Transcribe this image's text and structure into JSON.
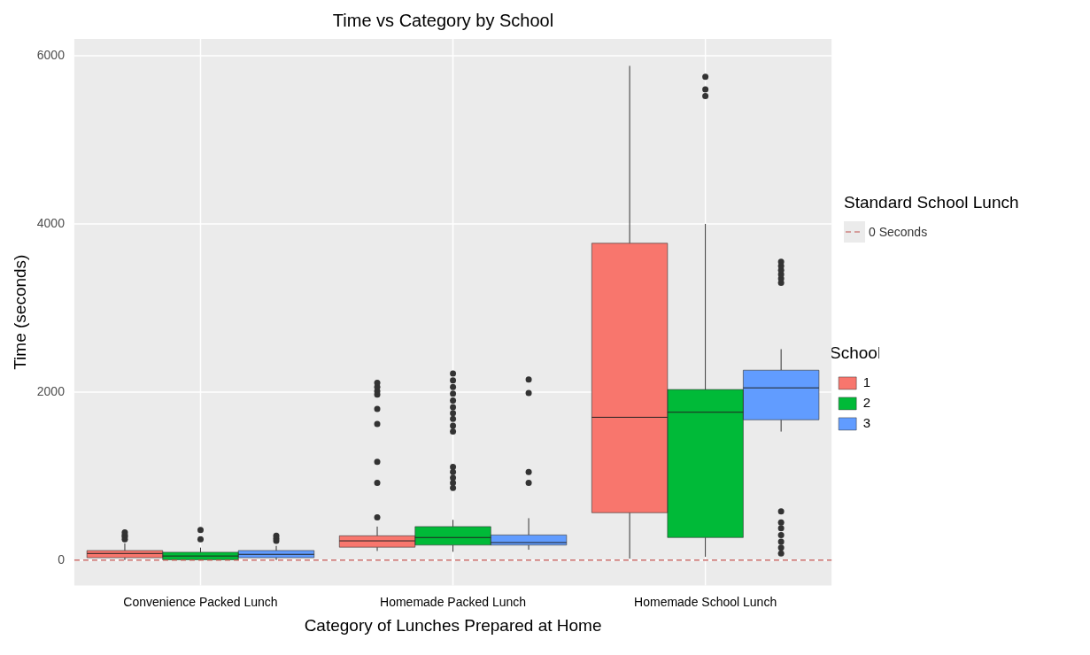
{
  "chart_data": {
    "type": "box",
    "title": "Time vs Category by School",
    "xlabel": "Category of Lunches Prepared at Home",
    "ylabel": "Time (seconds)",
    "legend_title": "School",
    "legend": "right",
    "annotations": [
      "Standard School Lunch"
    ],
    "categories": [
      "Convenience Packed Lunch",
      "Homemade Packed Lunch",
      "Homemade School Lunch"
    ],
    "ylim": [
      -300,
      6200
    ],
    "yticks": [
      0,
      2000,
      4000,
      6000
    ],
    "grid": true,
    "ref_lines": [
      {
        "axis": "y",
        "value": 0,
        "label": "0 Seconds",
        "color": "#c0504d",
        "line_style": "dashed"
      }
    ],
    "series": [
      {
        "name": "1",
        "color": "#f8766d",
        "boxes": [
          {
            "low": 0,
            "q1": 30,
            "median": 80,
            "q3": 115,
            "high": 200,
            "outliers": [
              250,
              280,
              300,
              330
            ]
          },
          {
            "low": 110,
            "q1": 155,
            "median": 230,
            "q3": 290,
            "high": 400,
            "outliers": [
              510,
              920,
              1170,
              1620,
              1800,
              1970,
              2010,
              2060,
              2110
            ]
          },
          {
            "low": 20,
            "q1": 565,
            "median": 1700,
            "q3": 3770,
            "high": 5880
          }
        ]
      },
      {
        "name": "2",
        "color": "#00ba38",
        "boxes": [
          {
            "low": 0,
            "q1": 5,
            "median": 50,
            "q3": 95,
            "high": 150,
            "outliers": [
              250,
              360
            ]
          },
          {
            "low": 100,
            "q1": 180,
            "median": 270,
            "q3": 400,
            "high": 480,
            "outliers": [
              860,
              920,
              980,
              1050,
              1110,
              1530,
              1600,
              1680,
              1750,
              1820,
              1900,
              1980,
              2060,
              2140,
              2220
            ]
          },
          {
            "low": 40,
            "q1": 270,
            "median": 1760,
            "q3": 2030,
            "high": 4000,
            "outliers": [
              5520,
              5600,
              5750
            ]
          }
        ]
      },
      {
        "name": "3",
        "color": "#619cff",
        "boxes": [
          {
            "low": 0,
            "q1": 30,
            "median": 70,
            "q3": 115,
            "high": 170,
            "outliers": [
              230,
              260,
              290
            ]
          },
          {
            "low": 125,
            "q1": 180,
            "median": 210,
            "q3": 300,
            "high": 500,
            "outliers": [
              920,
              1050,
              1990,
              2150
            ]
          },
          {
            "low": 1530,
            "q1": 1670,
            "median": 2050,
            "q3": 2260,
            "high": 2510,
            "outliers": [
              80,
              150,
              220,
              300,
              380,
              450,
              580,
              3300,
              3350,
              3400,
              3450,
              3500,
              3550
            ]
          }
        ]
      }
    ]
  }
}
